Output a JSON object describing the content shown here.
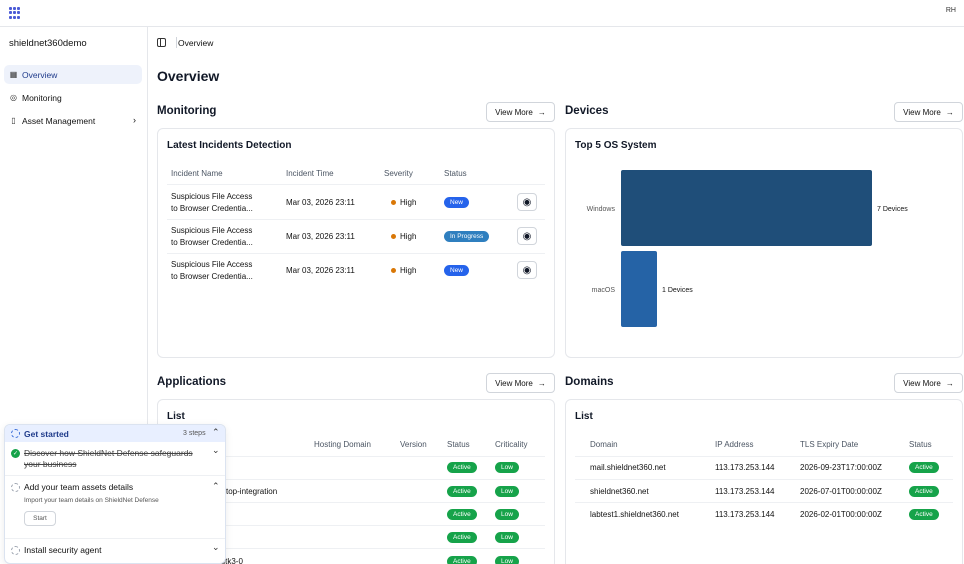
{
  "topbar": {
    "avatar": "RH"
  },
  "sidebar": {
    "org": "shieldnet360demo",
    "items": [
      {
        "label": "Overview",
        "icon": "grid-icon"
      },
      {
        "label": "Monitoring",
        "icon": "radar-icon"
      },
      {
        "label": "Asset Management",
        "icon": "device-icon"
      }
    ]
  },
  "breadcrumb": {
    "current": "Overview"
  },
  "page": {
    "title": "Overview"
  },
  "monitoring": {
    "title": "Monitoring",
    "view_more": "View More",
    "card_title": "Latest Incidents Detection",
    "columns": [
      "Incident Name",
      "Incident Time",
      "Severity",
      "Status"
    ],
    "rows": [
      {
        "name1": "Suspicious File Access",
        "name2": "to Browser Credentia...",
        "time": "Mar 03, 2026 23:11",
        "severity": "High",
        "status": "New"
      },
      {
        "name1": "Suspicious File Access",
        "name2": "to Browser Credentia...",
        "time": "Mar 03, 2026 23:11",
        "severity": "High",
        "status": "In Progress"
      },
      {
        "name1": "Suspicious File Access",
        "name2": "to Browser Credentia...",
        "time": "Mar 03, 2026 23:11",
        "severity": "High",
        "status": "New"
      }
    ]
  },
  "devices": {
    "title": "Devices",
    "view_more": "View More",
    "card_title": "Top 5 OS System"
  },
  "chart_data": {
    "type": "bar",
    "title": "Top 5 OS System",
    "categories": [
      "Windows",
      "macOS"
    ],
    "values": [
      7,
      1
    ],
    "data_labels": [
      "7 Devices",
      "1 Devices"
    ],
    "orientation": "horizontal",
    "colors": [
      "#1f4e79",
      "#2563a6"
    ]
  },
  "applications": {
    "title": "Applications",
    "view_more": "View More",
    "card_title": "List",
    "columns": [
      "Hosting Domain",
      "Version",
      "Status",
      "Criticality"
    ],
    "rows": [
      {
        "name": "",
        "status": "Active",
        "crit": "Low"
      },
      {
        "name": "top-integration",
        "status": "Active",
        "crit": "Low"
      },
      {
        "name": "",
        "status": "Active",
        "crit": "Low"
      },
      {
        "name": "",
        "status": "Active",
        "crit": "Low"
      },
      {
        "name": "libavahi-ui-gtk3-0",
        "status": "Active",
        "crit": "Low"
      }
    ]
  },
  "domains": {
    "title": "Domains",
    "view_more": "View More",
    "card_title": "List",
    "columns": [
      "Domain",
      "IP Address",
      "TLS Expiry Date",
      "Status"
    ],
    "rows": [
      {
        "domain": "mail.shieldnet360.net",
        "ip": "113.173.253.144",
        "tls": "2026-09-23T17:00:00Z",
        "status": "Active"
      },
      {
        "domain": "shieldnet360.net",
        "ip": "113.173.253.144",
        "tls": "2026-07-01T00:00:00Z",
        "status": "Active"
      },
      {
        "domain": "labtest1.shieldnet360.net",
        "ip": "113.173.253.144",
        "tls": "2026-02-01T00:00:00Z",
        "status": "Active"
      }
    ]
  },
  "get_started": {
    "title": "Get started",
    "steps_count": "3 steps",
    "steps": [
      {
        "title": "Discover how ShieldNet Defense safeguards",
        "title2": "your business"
      },
      {
        "title": "Add your team assets details",
        "desc": "Import your team details on ShieldNet Defense",
        "button": "Start"
      },
      {
        "title": "Install security agent"
      }
    ]
  },
  "colors": {
    "accent": "#2563eb",
    "active": "#16a34a",
    "bar_primary": "#1f4e79"
  }
}
